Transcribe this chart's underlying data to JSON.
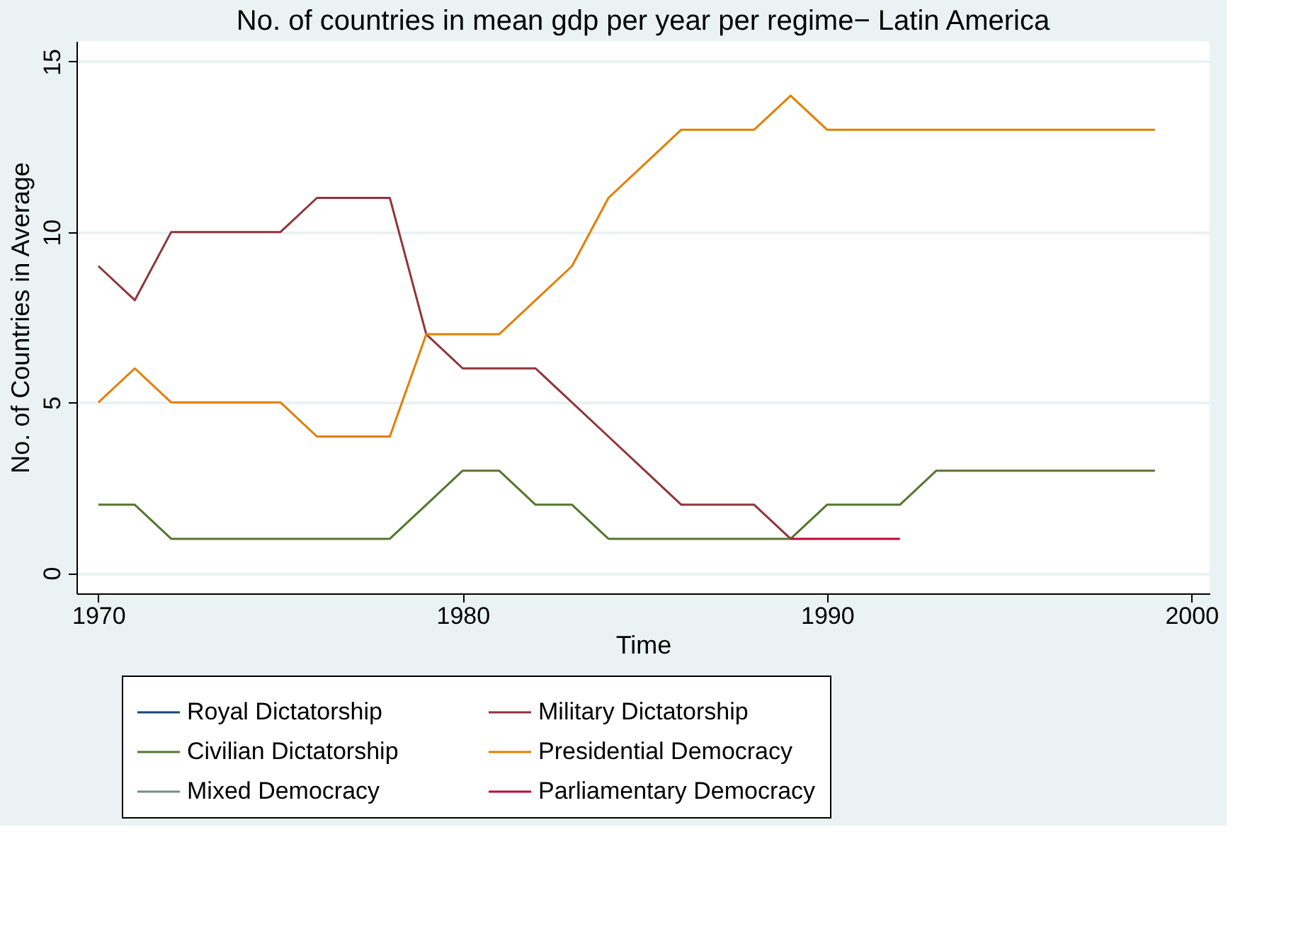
{
  "chart_data": {
    "type": "line",
    "title": "No. of countries in mean gdp per year per regime− Latin America",
    "xlabel": "Time",
    "ylabel": "No. of Countries in Average",
    "x": [
      1970,
      1971,
      1972,
      1973,
      1974,
      1975,
      1976,
      1977,
      1978,
      1979,
      1980,
      1981,
      1982,
      1983,
      1984,
      1985,
      1986,
      1987,
      1988,
      1989,
      1990,
      1991,
      1992,
      1993,
      1994,
      1995,
      1996,
      1997,
      1998,
      1999
    ],
    "series": [
      {
        "name": "Royal Dictatorship",
        "color": "#1a476f",
        "values": [
          null,
          null,
          null,
          null,
          null,
          null,
          null,
          null,
          null,
          null,
          null,
          null,
          null,
          null,
          null,
          null,
          null,
          null,
          null,
          null,
          null,
          null,
          null,
          null,
          null,
          null,
          null,
          null,
          null,
          null
        ]
      },
      {
        "name": "Military Dictatorship",
        "color": "#90353b",
        "values": [
          9,
          8,
          10,
          10,
          10,
          10,
          11,
          11,
          11,
          7,
          6,
          6,
          6,
          5,
          4,
          3,
          2,
          2,
          2,
          1,
          null,
          null,
          null,
          null,
          null,
          null,
          null,
          null,
          null,
          null
        ]
      },
      {
        "name": "Civilian Dictatorship",
        "color": "#55752f",
        "values": [
          2,
          2,
          1,
          1,
          1,
          1,
          1,
          1,
          1,
          2,
          3,
          3,
          2,
          2,
          1,
          1,
          1,
          1,
          1,
          1,
          2,
          2,
          2,
          3,
          3,
          3,
          3,
          3,
          3,
          3
        ]
      },
      {
        "name": "Presidential Democracy",
        "color": "#e37e00",
        "values": [
          5,
          6,
          5,
          5,
          5,
          5,
          4,
          4,
          4,
          7,
          7,
          7,
          8,
          9,
          11,
          12,
          13,
          13,
          13,
          14,
          13,
          13,
          13,
          13,
          13,
          13,
          13,
          13,
          13,
          13
        ]
      },
      {
        "name": "Mixed Democracy",
        "color": "#6e8e84",
        "values": [
          null,
          null,
          null,
          null,
          null,
          null,
          null,
          null,
          null,
          null,
          null,
          null,
          null,
          null,
          null,
          null,
          null,
          null,
          null,
          null,
          null,
          null,
          null,
          null,
          null,
          null,
          null,
          null,
          null,
          null
        ]
      },
      {
        "name": "Parliamentary Democracy",
        "color": "#c10534",
        "values": [
          null,
          null,
          null,
          null,
          null,
          null,
          null,
          null,
          null,
          null,
          null,
          null,
          null,
          null,
          null,
          null,
          null,
          null,
          null,
          1,
          1,
          1,
          1,
          null,
          null,
          null,
          null,
          null,
          null,
          null
        ]
      }
    ],
    "xlim": [
      1969.4,
      2000.5
    ],
    "xticks": [
      1970,
      1980,
      1990,
      2000
    ],
    "ylim": [
      -0.6,
      15.6
    ],
    "yticks": [
      0,
      5,
      10,
      15
    ],
    "grid": "y",
    "legend": "bottom",
    "marker": "none",
    "line_style": "solid"
  }
}
